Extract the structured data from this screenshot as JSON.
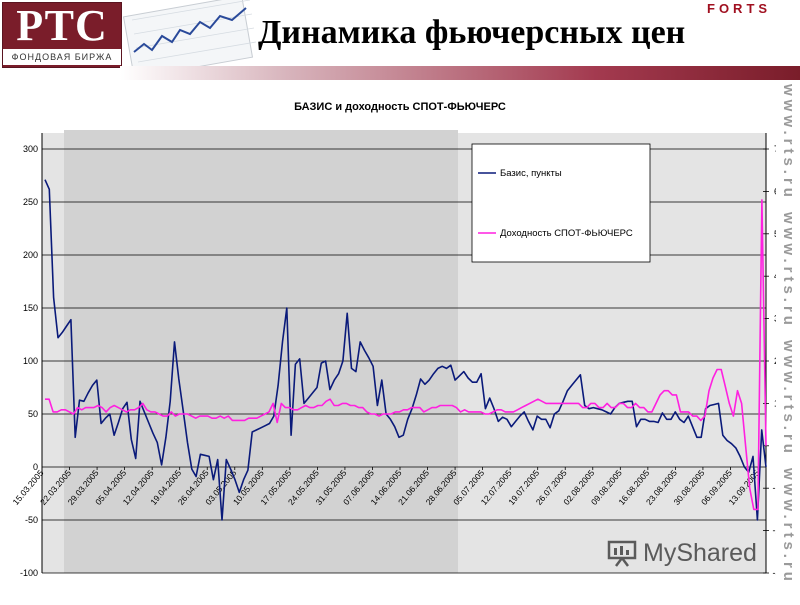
{
  "header": {
    "logo_big": "РТС",
    "logo_sub": "ФОНДОВАЯ БИРЖА",
    "title": "Динамика фьючерсных цен",
    "forts": "FORTS",
    "watermark": "www.rts.ru",
    "brand_text": "MyShared"
  },
  "colors": {
    "basis": "#0a1a7a",
    "yield": "#ff20e0",
    "accent": "#7a1d2a"
  },
  "chart_data": {
    "type": "line",
    "title": "БАЗИС и доходность СПОТ-ФЬЮЧЕРС",
    "x_ticks": [
      "15.03.2005",
      "22.03.2005",
      "29.03.2005",
      "05.04.2005",
      "12.04.2005",
      "19.04.2005",
      "26.04.2005",
      "03.05.2005",
      "10.05.2005",
      "17.05.2005",
      "24.05.2005",
      "31.05.2005",
      "07.06.2005",
      "14.06.2005",
      "21.06.2005",
      "28.06.2005",
      "05.07.2005",
      "12.07.2005",
      "19.07.2005",
      "26.07.2005",
      "02.08.2005",
      "09.08.2005",
      "16.08.2005",
      "23.08.2005",
      "30.08.2005",
      "06.09.2005",
      "13.09.2005"
    ],
    "y_left": {
      "min": -100,
      "max": 300,
      "ticks": [
        -100,
        -50,
        0,
        50,
        100,
        150,
        200,
        250,
        300
      ]
    },
    "y_right": {
      "min": -30,
      "max": 70,
      "ticks": [
        -30,
        -20,
        -10,
        0,
        10,
        20,
        30,
        40,
        50,
        60,
        70
      ]
    },
    "grid": true,
    "legend_position": "top-right",
    "series": [
      {
        "name": "Базис, пункты",
        "axis": "left",
        "values": [
          271,
          262,
          160,
          122,
          127,
          133,
          139,
          28,
          63,
          62,
          70,
          77,
          82,
          41,
          46,
          50,
          30,
          42,
          55,
          61,
          26,
          8,
          62,
          52,
          42,
          32,
          23,
          2,
          28,
          62,
          118,
          83,
          53,
          23,
          -2,
          -9,
          12,
          11,
          10,
          -12,
          7,
          -50,
          7,
          -2,
          -12,
          -24,
          -12,
          -3,
          33,
          35,
          37,
          39,
          41,
          48,
          77,
          118,
          150,
          30,
          97,
          102,
          60,
          65,
          70,
          75,
          98,
          100,
          73,
          82,
          88,
          100,
          145,
          93,
          90,
          118,
          110,
          103,
          95,
          58,
          82,
          50,
          45,
          38,
          28,
          30,
          45,
          55,
          68,
          83,
          78,
          82,
          88,
          93,
          95,
          93,
          96,
          82,
          86,
          90,
          84,
          80,
          80,
          88,
          55,
          65,
          55,
          43,
          47,
          45,
          38,
          43,
          48,
          52,
          43,
          35,
          48,
          45,
          45,
          37,
          50,
          53,
          62,
          72,
          77,
          82,
          87,
          58,
          55,
          56,
          55,
          54,
          52,
          50,
          56,
          60,
          61,
          62,
          62,
          38,
          45,
          45,
          43,
          43,
          42,
          51,
          45,
          45,
          52,
          45,
          42,
          48,
          38,
          28,
          28,
          55,
          58,
          59,
          60,
          30,
          25,
          22,
          18,
          10,
          0,
          -5,
          10,
          -50,
          35,
          0
        ]
      },
      {
        "name": "Доходность СПОТ-ФЬЮЧЕРС",
        "axis": "right",
        "values": [
          11,
          11,
          8,
          8,
          8.5,
          8.5,
          8,
          7.5,
          9,
          8.5,
          9,
          9,
          9,
          9.5,
          9,
          8,
          9,
          9.5,
          9,
          8.5,
          8,
          8.5,
          8.5,
          9,
          10,
          8.5,
          8,
          8,
          7.5,
          7,
          7,
          8,
          7,
          7.5,
          7.5,
          7.5,
          7,
          6.5,
          7,
          7,
          7,
          6.5,
          6.5,
          7,
          6.5,
          7,
          6,
          6,
          6,
          6,
          6.5,
          6.5,
          6.5,
          7,
          7.5,
          8,
          10,
          5.5,
          10,
          9,
          9,
          8.5,
          8.5,
          9,
          9.5,
          9,
          9,
          9.5,
          9.5,
          10.5,
          11,
          9.5,
          9.5,
          10,
          10,
          9.5,
          9.5,
          9,
          9,
          8,
          7.5,
          7.5,
          7,
          7.5,
          7.5,
          7.5,
          8,
          8,
          8.5,
          8.5,
          9,
          9,
          9,
          8,
          8.5,
          9,
          9,
          9.5,
          9.5,
          9.5,
          9.5,
          9,
          8,
          8.5,
          8,
          8,
          8,
          8,
          7.5,
          7.5,
          8,
          8.5,
          8.5,
          8,
          8,
          8,
          8.5,
          9,
          9.5,
          10,
          10.5,
          11,
          10.5,
          10,
          10,
          10,
          10,
          10,
          10,
          10,
          10,
          10,
          9,
          9,
          10,
          10,
          9,
          9,
          10,
          9,
          9,
          10,
          10,
          9,
          9,
          10,
          9,
          9,
          8,
          8,
          10,
          12,
          13,
          13,
          12,
          12,
          8,
          8,
          8,
          7,
          7,
          6,
          7,
          13,
          16,
          18,
          18,
          14,
          10,
          7,
          13,
          10,
          0,
          -10,
          -15,
          -15,
          58,
          0
        ]
      }
    ]
  }
}
